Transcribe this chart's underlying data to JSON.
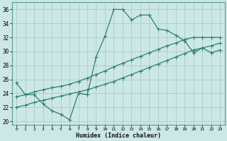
{
  "xlabel": "Humidex (Indice chaleur)",
  "xlim": [
    -0.5,
    23.5
  ],
  "ylim": [
    19.5,
    37.0
  ],
  "xticks": [
    0,
    1,
    2,
    3,
    4,
    5,
    6,
    7,
    8,
    9,
    10,
    11,
    12,
    13,
    14,
    15,
    16,
    17,
    18,
    19,
    20,
    21,
    22,
    23
  ],
  "yticks": [
    20,
    22,
    24,
    26,
    28,
    30,
    32,
    34,
    36
  ],
  "bg_color": "#cce8e6",
  "grid_color": "#a8cccb",
  "line_color": "#2e7d6e",
  "line1_x": [
    0,
    1,
    2,
    3,
    4,
    5,
    6,
    7,
    8,
    9,
    10,
    11,
    12,
    13,
    14,
    15,
    16,
    17,
    18,
    19,
    20,
    21,
    22,
    23
  ],
  "line1_y": [
    25.5,
    23.8,
    23.8,
    22.5,
    21.5,
    21.0,
    20.2,
    24.0,
    23.8,
    29.2,
    32.2,
    36.0,
    36.0,
    34.5,
    35.2,
    35.2,
    33.2,
    33.0,
    32.3,
    31.5,
    29.8,
    30.5,
    29.8,
    30.2
  ],
  "line2_x": [
    0,
    1,
    2,
    3,
    4,
    5,
    6,
    7,
    8,
    9,
    10,
    11,
    12,
    13,
    14,
    15,
    16,
    17,
    18,
    19,
    20,
    21,
    22,
    23
  ],
  "line2_y": [
    23.5,
    23.8,
    24.2,
    24.5,
    24.8,
    25.0,
    25.3,
    25.7,
    26.2,
    26.7,
    27.2,
    27.8,
    28.3,
    28.8,
    29.3,
    29.8,
    30.3,
    30.8,
    31.2,
    31.7,
    32.0,
    32.0,
    32.0,
    32.0
  ],
  "line3_x": [
    0,
    1,
    2,
    3,
    4,
    5,
    6,
    7,
    8,
    9,
    10,
    11,
    12,
    13,
    14,
    15,
    16,
    17,
    18,
    19,
    20,
    21,
    22,
    23
  ],
  "line3_y": [
    22.0,
    22.3,
    22.7,
    23.0,
    23.3,
    23.6,
    23.9,
    24.2,
    24.5,
    24.9,
    25.3,
    25.7,
    26.2,
    26.7,
    27.2,
    27.7,
    28.2,
    28.7,
    29.2,
    29.7,
    30.2,
    30.5,
    30.8,
    31.2
  ]
}
